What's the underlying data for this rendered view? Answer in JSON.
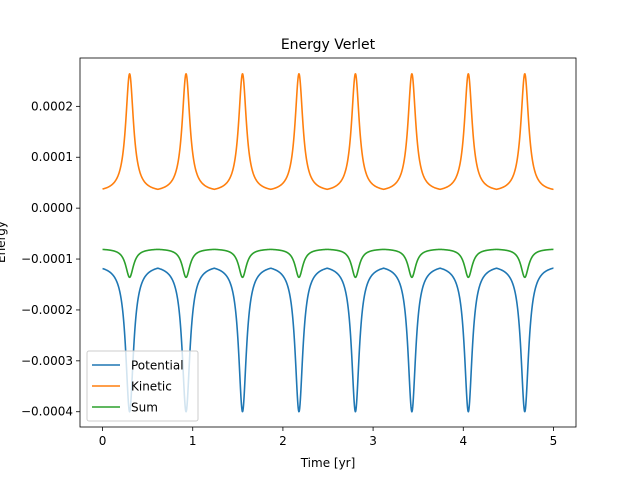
{
  "chart_data": {
    "type": "line",
    "title": "Energy Verlet",
    "xlabel": "Time [yr]",
    "ylabel": "Energy",
    "xlim": [
      -0.25,
      5.25
    ],
    "ylim": [
      -0.00043,
      0.000295
    ],
    "xticks": [
      0,
      1,
      2,
      3,
      4,
      5
    ],
    "xtick_labels": [
      "0",
      "1",
      "2",
      "3",
      "4",
      "5"
    ],
    "yticks": [
      -0.0004,
      -0.0003,
      -0.0002,
      -0.0001,
      0.0,
      0.0001,
      0.0002
    ],
    "ytick_labels": [
      "−0.0004",
      "−0.0003",
      "−0.0002",
      "−0.0001",
      "0.0000",
      "0.0001",
      "0.0002"
    ],
    "grid": false,
    "legend_position": "lower-left",
    "period": 0.626,
    "peak_times": [
      0.3,
      0.926,
      1.552,
      2.178,
      2.804,
      3.43,
      4.056,
      4.682
    ],
    "x_range": [
      0,
      5
    ],
    "series": [
      {
        "name": "Potential",
        "color": "#1f77b4",
        "baseline": -0.000118,
        "extreme": -0.0004
      },
      {
        "name": "Kinetic",
        "color": "#ff7f0e",
        "baseline": 3.7e-05,
        "extreme": 0.000264
      },
      {
        "name": "Sum",
        "color": "#2ca02c",
        "baseline": -8.1e-05,
        "extreme": -0.000136
      }
    ]
  }
}
